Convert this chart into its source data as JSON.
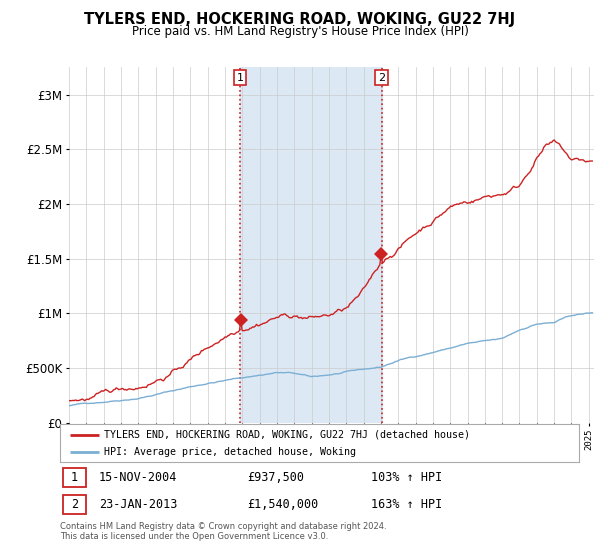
{
  "title": "TYLERS END, HOCKERING ROAD, WOKING, GU22 7HJ",
  "subtitle": "Price paid vs. HM Land Registry's House Price Index (HPI)",
  "sale1_date": "15-NOV-2004",
  "sale1_price": 937500,
  "sale1_price_str": "£937,500",
  "sale1_pct": "103%",
  "sale1_year": 2004.88,
  "sale2_date": "23-JAN-2013",
  "sale2_price": 1540000,
  "sale2_price_str": "£1,540,000",
  "sale2_pct": "163%",
  "sale2_year": 2013.05,
  "hpi_color": "#7bafd4",
  "price_color": "#cc2222",
  "vline_color": "#cc2222",
  "span_color": "#dce9f5",
  "ylim_max": 3250000,
  "xlim_min": 1995,
  "xlim_max": 2025.3,
  "footer": "Contains HM Land Registry data © Crown copyright and database right 2024.\nThis data is licensed under the Open Government Licence v3.0."
}
